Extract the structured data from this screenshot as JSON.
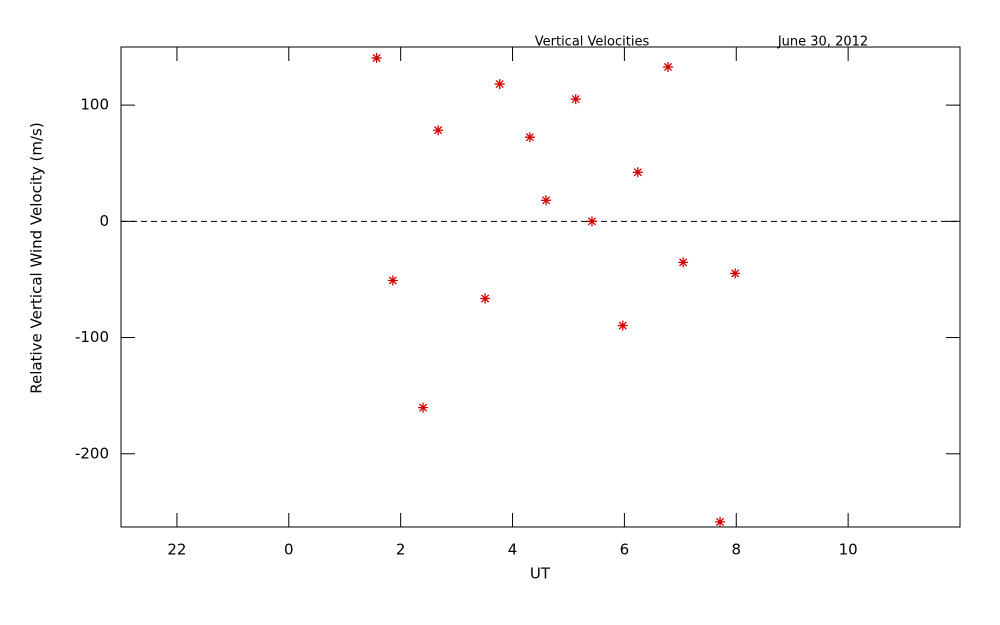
{
  "chart_data": {
    "type": "scatter",
    "title": "Vertical Velocities",
    "subtitle": "June 30, 2012",
    "x_label": "UT",
    "y_label": "Relative Vertical Wind Velocity (m/s)",
    "xlim": [
      -3,
      12
    ],
    "ylim": [
      -263,
      150
    ],
    "xticks": [
      {
        "value": -2,
        "label": "22"
      },
      0,
      2,
      4,
      6,
      8,
      10
    ],
    "yticks": [
      -200,
      -100,
      0,
      100
    ],
    "reference_line": 0,
    "series": [
      {
        "color": "#d40000",
        "x": [
          1.57,
          1.86,
          2.4,
          2.67,
          3.51,
          3.77,
          4.31,
          4.6,
          5.13,
          5.42,
          5.97,
          6.24,
          6.78,
          7.05,
          7.71,
          7.98
        ],
        "values": [
          140.5,
          -50.9,
          -160.3,
          78.4,
          -66.4,
          118.1,
          72.4,
          18.1,
          105.2,
          0,
          -89.7,
          42.2,
          132.8,
          -35.3,
          -258.6,
          -44.8
        ]
      }
    ]
  }
}
